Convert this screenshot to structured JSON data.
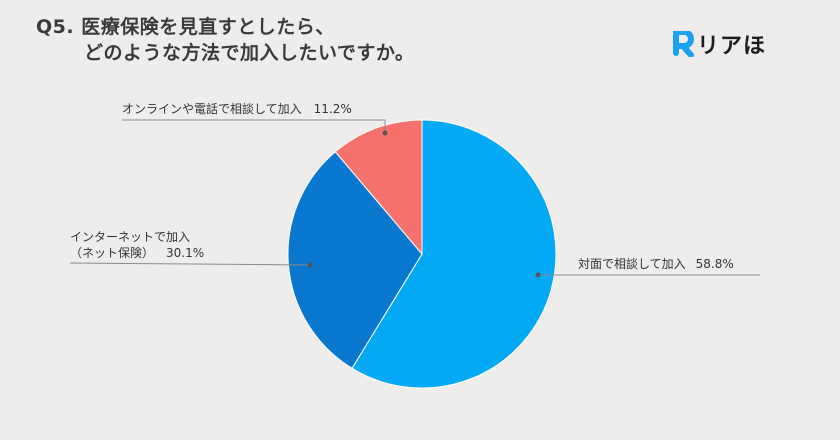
{
  "header": {
    "question_line1": "Q5. 医療保険を見直すとしたら、",
    "question_line2": "どのような方法で加入したいですか。"
  },
  "logo": {
    "text": "リアほ",
    "icon": "r-logo-icon",
    "color": "#1aa1f2"
  },
  "chart_data": {
    "type": "pie",
    "title": "Q5. 医療保険を見直すとしたら、どのような方法で加入したいですか。",
    "start_angle_deg": 0,
    "direction": "clockwise",
    "slices": [
      {
        "label": "対面で相談して加入",
        "value": 58.8,
        "display": "58.8%",
        "color": "#03a9f4"
      },
      {
        "label": "インターネットで加入（ネット保険）",
        "label_line1": "インターネットで加入",
        "label_line2": "（ネット保険）",
        "value": 30.1,
        "display": "30.1%",
        "color": "#0a78cf"
      },
      {
        "label": "オンラインや電話で相談して加入",
        "value": 11.2,
        "display": "11.2%",
        "color": "#f4716c"
      }
    ]
  }
}
